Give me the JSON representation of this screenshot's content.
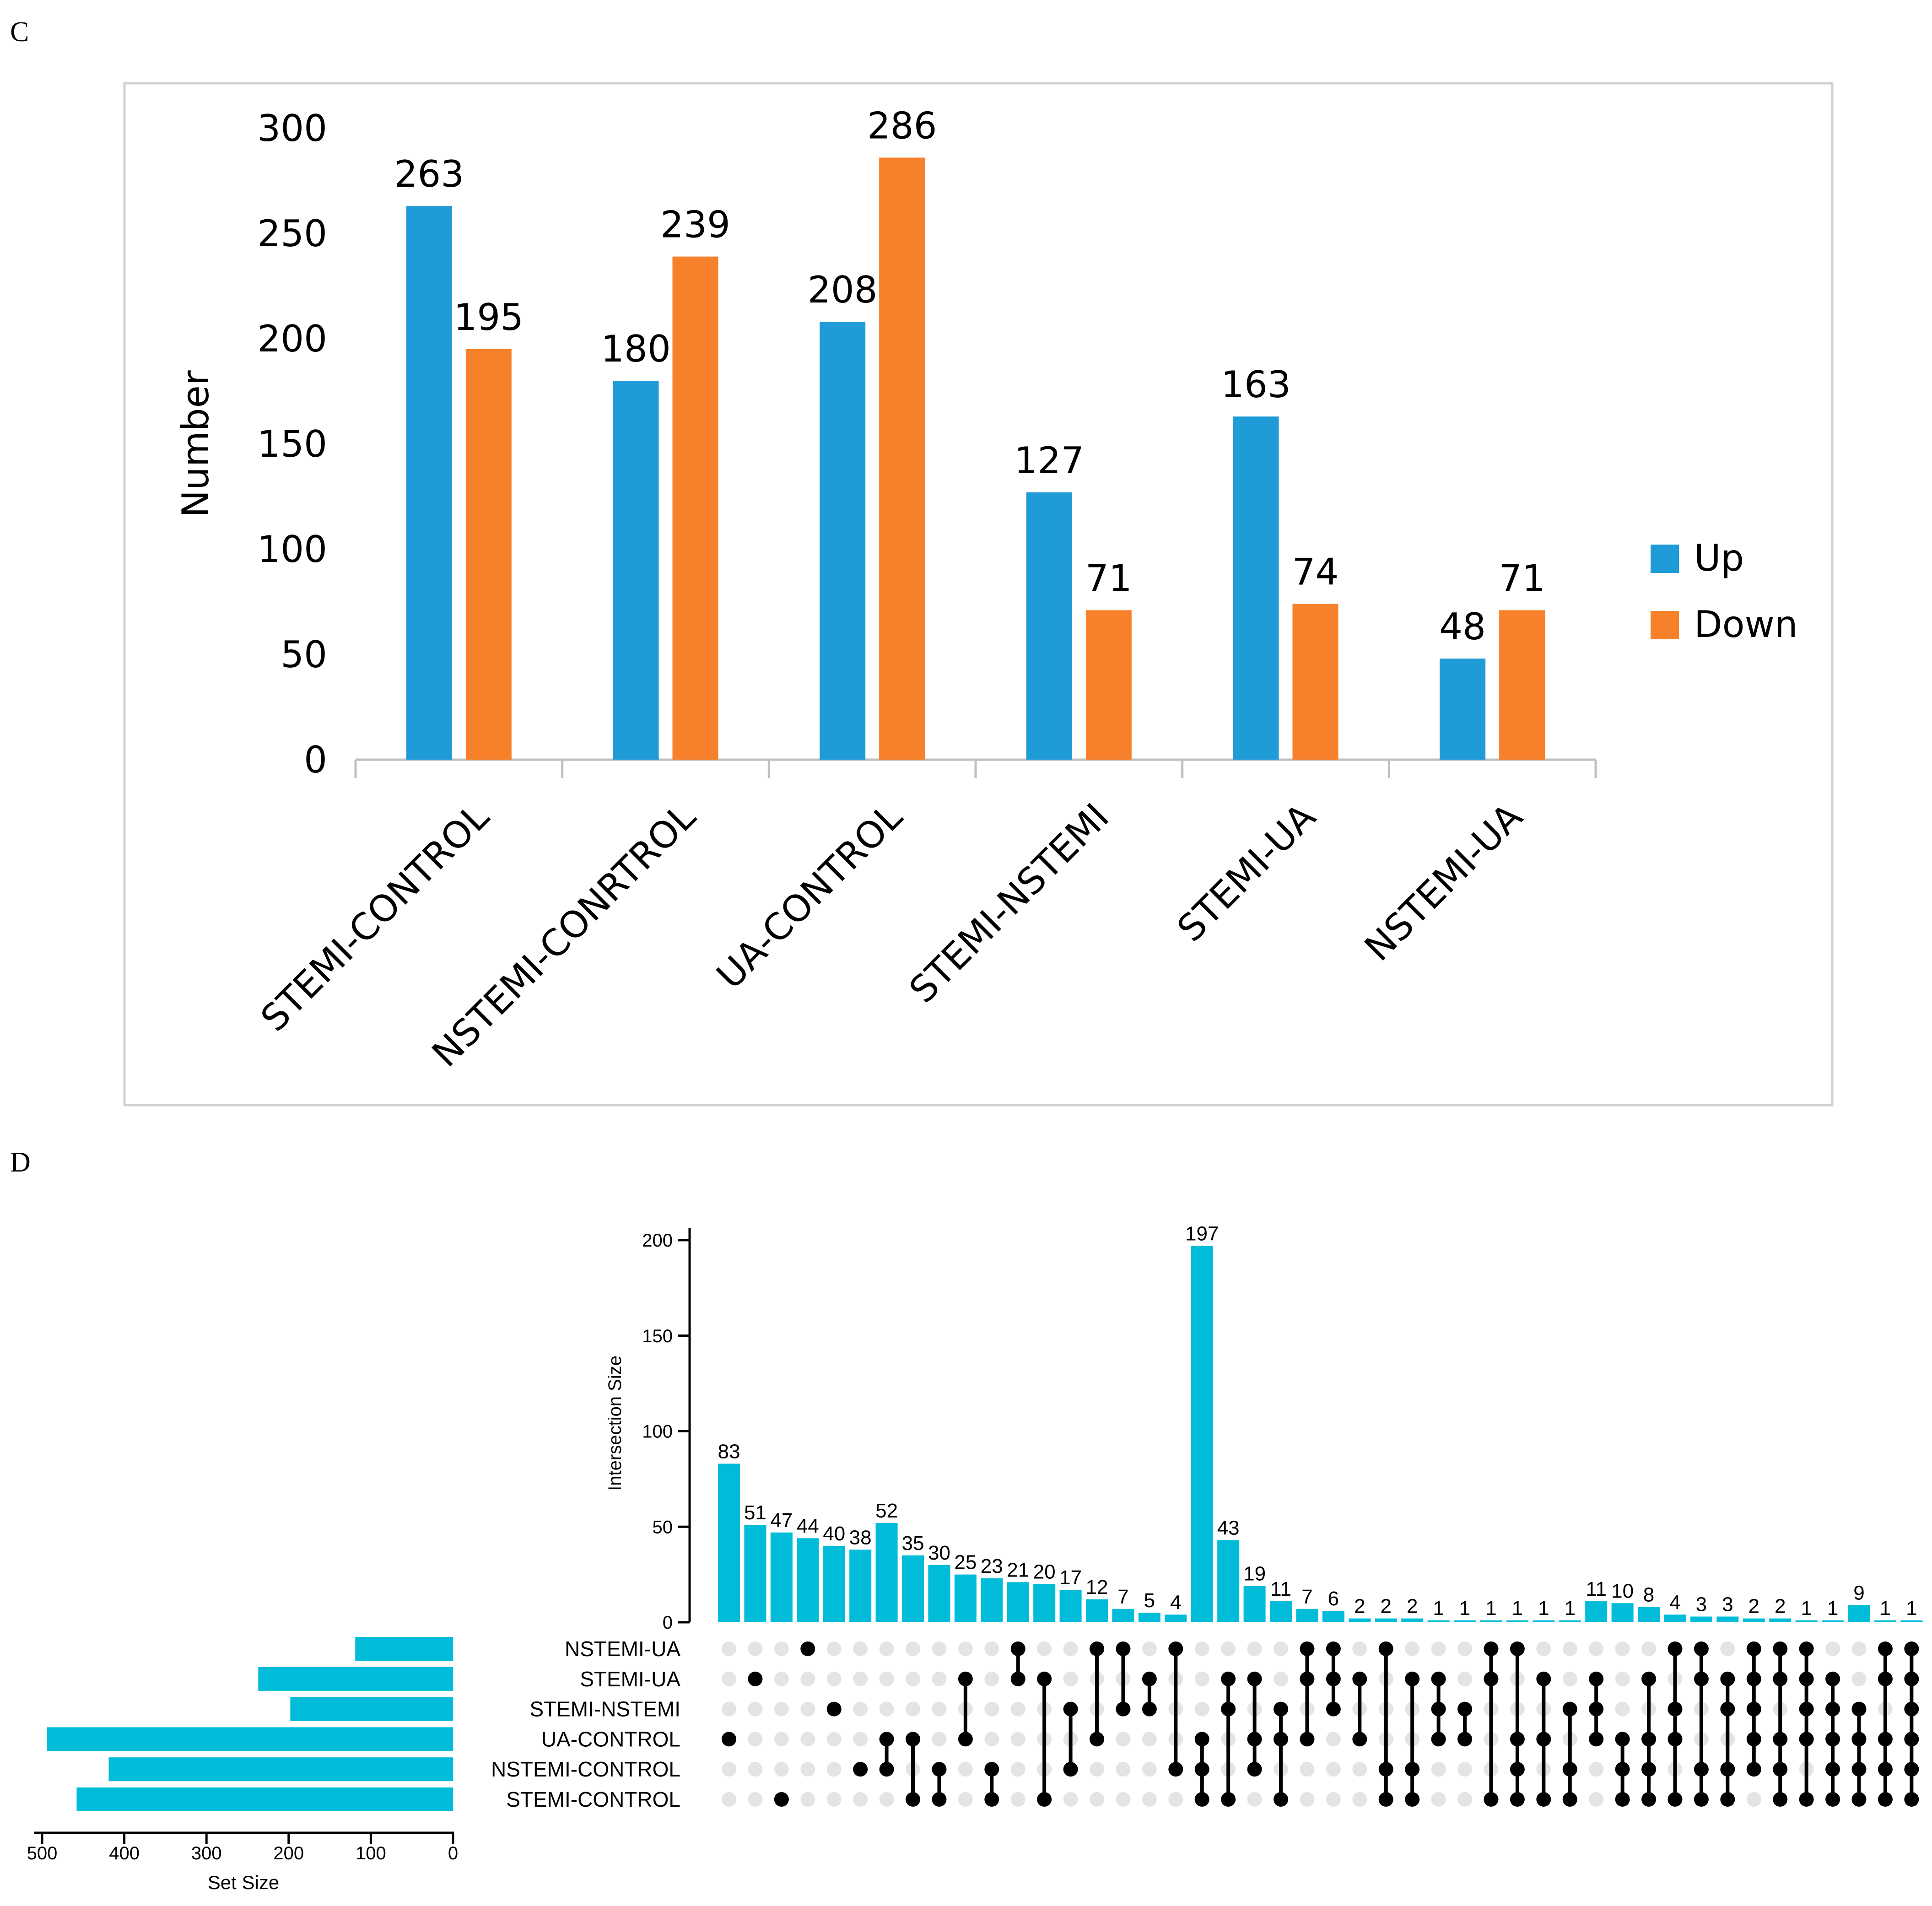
{
  "panel_c_label": "C",
  "panel_d_label": "D",
  "colors": {
    "up": "#1f9bd7",
    "down": "#f7812a",
    "upset_bar": "#00bcd8",
    "dot_on": "#000000",
    "dot_off": "#e4e4e4",
    "frame": "#d0d0d0",
    "axis": "#bfbfbf"
  },
  "chart_data": [
    {
      "type": "bar",
      "title": "",
      "xlabel": "",
      "ylabel": "Number",
      "ylim": [
        0,
        300
      ],
      "yticks": [
        0,
        50,
        100,
        150,
        200,
        250,
        300
      ],
      "categories": [
        "STEMI-CONTROL",
        "NSTEMI-CONRTROL",
        "UA-CONTROL",
        "STEMI-NSTEMI",
        "STEMI-UA",
        "NSTEMI-UA"
      ],
      "series": [
        {
          "name": "Up",
          "color_key": "up",
          "values": [
            263,
            180,
            208,
            127,
            163,
            48
          ]
        },
        {
          "name": "Down",
          "color_key": "down",
          "values": [
            195,
            239,
            286,
            71,
            74,
            71
          ]
        }
      ],
      "legend_position": "right"
    },
    {
      "type": "upset",
      "sets": [
        "NSTEMI-UA",
        "STEMI-UA",
        "STEMI-NSTEMI",
        "UA-CONTROL",
        "NSTEMI-CONTROL",
        "STEMI-CONTROL"
      ],
      "set_size_label": "Set Size",
      "set_sizes": [
        119,
        237,
        198,
        494,
        419,
        458
      ],
      "set_size_ticks": [
        500,
        400,
        300,
        200,
        100,
        0
      ],
      "set_size_lim": [
        0,
        500
      ],
      "intersection_label": "Intersection Size",
      "intersection_ticks": [
        0,
        50,
        100,
        150,
        200
      ],
      "intersection_lim": [
        0,
        200
      ],
      "intersections": [
        {
          "size": 83,
          "members": [
            "UA-CONTROL"
          ]
        },
        {
          "size": 51,
          "members": [
            "STEMI-UA"
          ]
        },
        {
          "size": 47,
          "members": [
            "STEMI-CONTROL"
          ]
        },
        {
          "size": 44,
          "members": [
            "NSTEMI-UA"
          ]
        },
        {
          "size": 40,
          "members": [
            "STEMI-NSTEMI"
          ]
        },
        {
          "size": 38,
          "members": [
            "NSTEMI-CONTROL"
          ]
        },
        {
          "size": 52,
          "members": [
            "UA-CONTROL",
            "NSTEMI-CONTROL"
          ]
        },
        {
          "size": 35,
          "members": [
            "UA-CONTROL",
            "STEMI-CONTROL"
          ]
        },
        {
          "size": 30,
          "members": [
            "NSTEMI-CONTROL",
            "STEMI-CONTROL"
          ]
        },
        {
          "size": 25,
          "members": [
            "STEMI-UA",
            "UA-CONTROL"
          ]
        },
        {
          "size": 23,
          "members": [
            "NSTEMI-CONTROL",
            "STEMI-CONTROL"
          ]
        },
        {
          "size": 21,
          "members": [
            "NSTEMI-UA",
            "STEMI-UA"
          ]
        },
        {
          "size": 20,
          "members": [
            "STEMI-UA",
            "STEMI-CONTROL"
          ]
        },
        {
          "size": 17,
          "members": [
            "STEMI-NSTEMI",
            "NSTEMI-CONTROL"
          ]
        },
        {
          "size": 12,
          "members": [
            "NSTEMI-UA",
            "UA-CONTROL"
          ]
        },
        {
          "size": 7,
          "members": [
            "NSTEMI-UA",
            "STEMI-NSTEMI"
          ]
        },
        {
          "size": 5,
          "members": [
            "STEMI-UA",
            "STEMI-NSTEMI"
          ]
        },
        {
          "size": 4,
          "members": [
            "NSTEMI-UA",
            "NSTEMI-CONTROL"
          ]
        },
        {
          "size": 197,
          "members": [
            "UA-CONTROL",
            "NSTEMI-CONTROL",
            "STEMI-CONTROL"
          ]
        },
        {
          "size": 43,
          "members": [
            "STEMI-UA",
            "STEMI-NSTEMI",
            "STEMI-CONTROL"
          ]
        },
        {
          "size": 19,
          "members": [
            "STEMI-UA",
            "UA-CONTROL",
            "NSTEMI-CONTROL"
          ]
        },
        {
          "size": 11,
          "members": [
            "STEMI-NSTEMI",
            "UA-CONTROL",
            "STEMI-CONTROL"
          ]
        },
        {
          "size": 7,
          "members": [
            "NSTEMI-UA",
            "STEMI-UA",
            "UA-CONTROL"
          ]
        },
        {
          "size": 6,
          "members": [
            "NSTEMI-UA",
            "STEMI-UA",
            "STEMI-NSTEMI"
          ]
        },
        {
          "size": 2,
          "members": [
            "STEMI-UA",
            "UA-CONTROL"
          ]
        },
        {
          "size": 2,
          "members": [
            "NSTEMI-UA",
            "NSTEMI-CONTROL",
            "STEMI-CONTROL"
          ]
        },
        {
          "size": 2,
          "members": [
            "STEMI-UA",
            "NSTEMI-CONTROL",
            "STEMI-CONTROL"
          ]
        },
        {
          "size": 1,
          "members": [
            "STEMI-UA",
            "STEMI-NSTEMI",
            "UA-CONTROL"
          ]
        },
        {
          "size": 1,
          "members": [
            "STEMI-NSTEMI",
            "UA-CONTROL"
          ]
        },
        {
          "size": 1,
          "members": [
            "NSTEMI-UA",
            "STEMI-UA",
            "STEMI-CONTROL"
          ]
        },
        {
          "size": 1,
          "members": [
            "NSTEMI-UA",
            "UA-CONTROL",
            "NSTEMI-CONTROL",
            "STEMI-CONTROL"
          ]
        },
        {
          "size": 1,
          "members": [
            "STEMI-UA",
            "UA-CONTROL",
            "STEMI-CONTROL"
          ]
        },
        {
          "size": 1,
          "members": [
            "STEMI-NSTEMI",
            "NSTEMI-CONTROL",
            "STEMI-CONTROL"
          ]
        },
        {
          "size": 11,
          "members": [
            "STEMI-UA",
            "STEMI-NSTEMI",
            "UA-CONTROL"
          ]
        },
        {
          "size": 10,
          "members": [
            "UA-CONTROL",
            "NSTEMI-CONTROL",
            "STEMI-CONTROL"
          ]
        },
        {
          "size": 8,
          "members": [
            "STEMI-UA",
            "UA-CONTROL",
            "NSTEMI-CONTROL",
            "STEMI-CONTROL"
          ]
        },
        {
          "size": 4,
          "members": [
            "NSTEMI-UA",
            "STEMI-NSTEMI",
            "UA-CONTROL",
            "STEMI-CONTROL"
          ]
        },
        {
          "size": 3,
          "members": [
            "NSTEMI-UA",
            "STEMI-UA",
            "NSTEMI-CONTROL",
            "STEMI-CONTROL"
          ]
        },
        {
          "size": 3,
          "members": [
            "STEMI-UA",
            "STEMI-NSTEMI",
            "NSTEMI-CONTROL",
            "STEMI-CONTROL"
          ]
        },
        {
          "size": 2,
          "members": [
            "NSTEMI-UA",
            "STEMI-UA",
            "STEMI-NSTEMI",
            "UA-CONTROL",
            "NSTEMI-CONTROL"
          ]
        },
        {
          "size": 2,
          "members": [
            "NSTEMI-UA",
            "STEMI-UA",
            "UA-CONTROL",
            "NSTEMI-CONTROL",
            "STEMI-CONTROL"
          ]
        },
        {
          "size": 1,
          "members": [
            "NSTEMI-UA",
            "STEMI-UA",
            "STEMI-NSTEMI",
            "UA-CONTROL",
            "STEMI-CONTROL"
          ]
        },
        {
          "size": 1,
          "members": [
            "STEMI-UA",
            "STEMI-NSTEMI",
            "UA-CONTROL",
            "NSTEMI-CONTROL",
            "STEMI-CONTROL"
          ]
        },
        {
          "size": 9,
          "members": [
            "STEMI-NSTEMI",
            "UA-CONTROL",
            "NSTEMI-CONTROL",
            "STEMI-CONTROL"
          ]
        },
        {
          "size": 1,
          "members": [
            "NSTEMI-UA",
            "STEMI-UA",
            "UA-CONTROL",
            "NSTEMI-CONTROL",
            "STEMI-CONTROL"
          ]
        },
        {
          "size": 1,
          "members": [
            "NSTEMI-UA",
            "STEMI-UA",
            "STEMI-NSTEMI",
            "UA-CONTROL",
            "NSTEMI-CONTROL",
            "STEMI-CONTROL"
          ]
        }
      ]
    }
  ]
}
